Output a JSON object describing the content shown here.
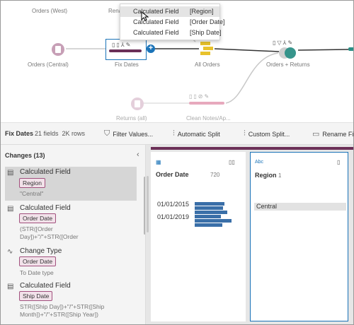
{
  "flow": {
    "nodes": {
      "orders_west": "Orders (West)",
      "rename_partial": "Rena",
      "orders_central": "Orders (Central)",
      "fix_dates": "Fix Dates",
      "all_orders": "All Orders",
      "orders_returns": "Orders + Returns",
      "returns_all": "Returns (all)",
      "clean_notes": "Clean Notes/Ap..."
    },
    "plus_symbol": "+",
    "colors": {
      "step_bar": "#6b2f57",
      "selection": "#1a73b8",
      "input_node": "#c79fb6",
      "union": "#e8c22c",
      "join": "#2c8f86"
    }
  },
  "menu": {
    "items": [
      {
        "field": "Calculated Field",
        "target": "[Region]",
        "highlighted": true
      },
      {
        "field": "Calculated Field",
        "target": "[Order Date]",
        "highlighted": false
      },
      {
        "field": "Calculated Field",
        "target": "[Ship Date]",
        "highlighted": false
      }
    ]
  },
  "toolbar": {
    "title": "Fix Dates",
    "fields": "21 fields",
    "rows": "2K rows",
    "filter": "Filter Values...",
    "split": "Automatic Split",
    "custom_split": "Custom Split...",
    "rename": "Rename Fi"
  },
  "changes": {
    "header": "Changes (13)",
    "collapse_icon": "chevron-left-icon",
    "items": [
      {
        "icon": "calculated-field-icon",
        "title": "Calculated Field",
        "pill": "Region",
        "detail": "\"Central\""
      },
      {
        "icon": "calculated-field-icon",
        "title": "Calculated Field",
        "pill": "Order Date",
        "detail": "(STR([Order\nDay])+\"/\"+STR([Order"
      },
      {
        "icon": "change-type-icon",
        "title": "Change Type",
        "pill": "Order Date",
        "detail": "To Date type"
      },
      {
        "icon": "calculated-field-icon",
        "title": "Calculated Field",
        "pill": "Ship Date",
        "detail": "STR([Ship Day])+\"/\"+STR([Ship\nMonth])+\"/\"+STR([Ship Year])"
      }
    ]
  },
  "profile": {
    "cards": [
      {
        "type_label": "",
        "type_icon": "calendar-icon",
        "name": "Order Date",
        "count": "720",
        "axis": [
          "01/01/2015",
          "01/01/2019"
        ],
        "bars": [
          0.75,
          0.72,
          0.82,
          0.66,
          0.92,
          0.7
        ]
      },
      {
        "type_label": "Abc",
        "name": "Region",
        "count": "1",
        "values": [
          "Central"
        ]
      }
    ]
  }
}
